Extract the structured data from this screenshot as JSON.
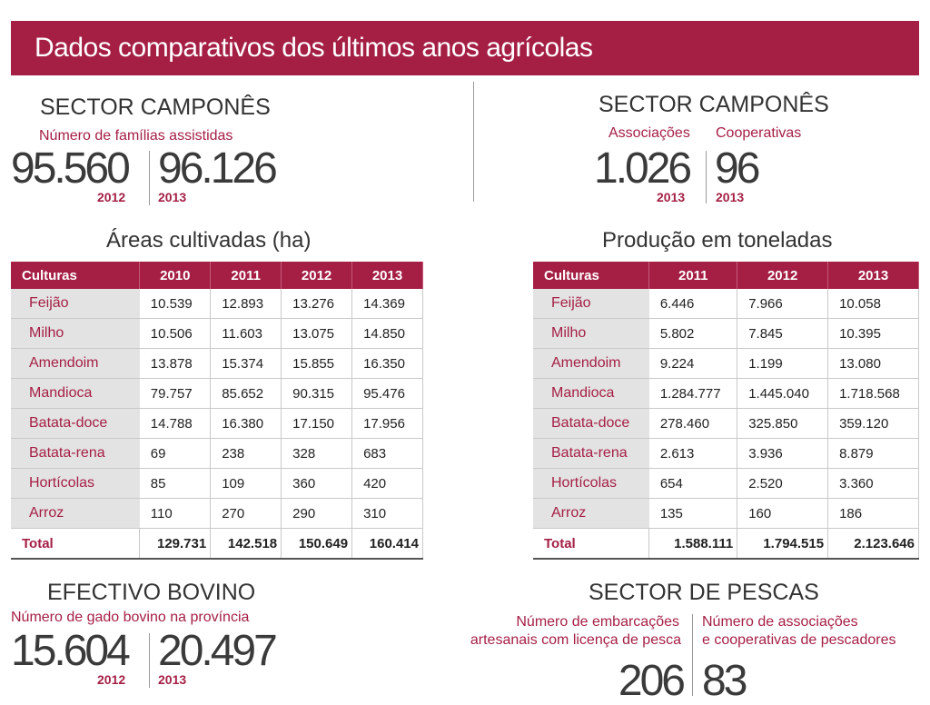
{
  "header": {
    "title": "Dados comparativos dos últimos anos agrícolas"
  },
  "familias": {
    "title": "SECTOR CAMPONÊS",
    "subtitle": "Número de famílias assistidas",
    "value_2012": "95.560",
    "year_2012": "2012",
    "value_2013": "96.126",
    "year_2013": "2013"
  },
  "organizacoes": {
    "title": "SECTOR CAMPONÊS",
    "label_associacoes": "Associações",
    "label_cooperativas": "Cooperativas",
    "value_associacoes": "1.026",
    "year_associacoes": "2013",
    "value_cooperativas": "96",
    "year_cooperativas": "2013"
  },
  "areas": {
    "title": "Áreas cultivadas (ha)",
    "headers": [
      "Culturas",
      "2010",
      "2011",
      "2012",
      "2013"
    ],
    "rows": [
      [
        "Feijão",
        "10.539",
        "12.893",
        "13.276",
        "14.369"
      ],
      [
        "Milho",
        "10.506",
        "11.603",
        "13.075",
        "14.850"
      ],
      [
        "Amendoim",
        "13.878",
        "15.374",
        "15.855",
        "16.350"
      ],
      [
        "Mandioca",
        "79.757",
        "85.652",
        "90.315",
        "95.476"
      ],
      [
        "Batata-doce",
        "14.788",
        "16.380",
        "17.150",
        "17.956"
      ],
      [
        "Batata-rena",
        "69",
        "238",
        "328",
        "683"
      ],
      [
        "Hortícolas",
        "85",
        "109",
        "360",
        "420"
      ],
      [
        "Arroz",
        "110",
        "270",
        "290",
        "310"
      ]
    ],
    "total": [
      "Total",
      "129.731",
      "142.518",
      "150.649",
      "160.414"
    ]
  },
  "producao": {
    "title": "Produção em toneladas",
    "headers": [
      "Culturas",
      "2011",
      "2012",
      "2013"
    ],
    "rows": [
      [
        "Feijão",
        "6.446",
        "7.966",
        "10.058"
      ],
      [
        "Milho",
        "5.802",
        "7.845",
        "10.395"
      ],
      [
        "Amendoim",
        "9.224",
        "1.199",
        "13.080"
      ],
      [
        "Mandioca",
        "1.284.777",
        "1.445.040",
        "1.718.568"
      ],
      [
        "Batata-doce",
        "278.460",
        "325.850",
        "359.120"
      ],
      [
        "Batata-rena",
        "2.613",
        "3.936",
        "8.879"
      ],
      [
        "Hortícolas",
        "654",
        "2.520",
        "3.360"
      ],
      [
        "Arroz",
        "135",
        "160",
        "186"
      ]
    ],
    "total": [
      "Total",
      "1.588.111",
      "1.794.515",
      "2.123.646"
    ]
  },
  "bovino": {
    "title": "EFECTIVO BOVINO",
    "subtitle": "Número de gado bovino na província",
    "value_2012": "15.604",
    "year_2012": "2012",
    "value_2013": "20.497",
    "year_2013": "2013"
  },
  "pescas": {
    "title": "SECTOR DE PESCAS",
    "label_embarcacoes_1": "Número de embarcações",
    "label_embarcacoes_2": "artesanais com licença de pesca",
    "label_associacoes_1": "Número de associações",
    "label_associacoes_2": "e cooperativas de pescadores",
    "value_embarcacoes": "206",
    "value_associacoes": "83"
  }
}
